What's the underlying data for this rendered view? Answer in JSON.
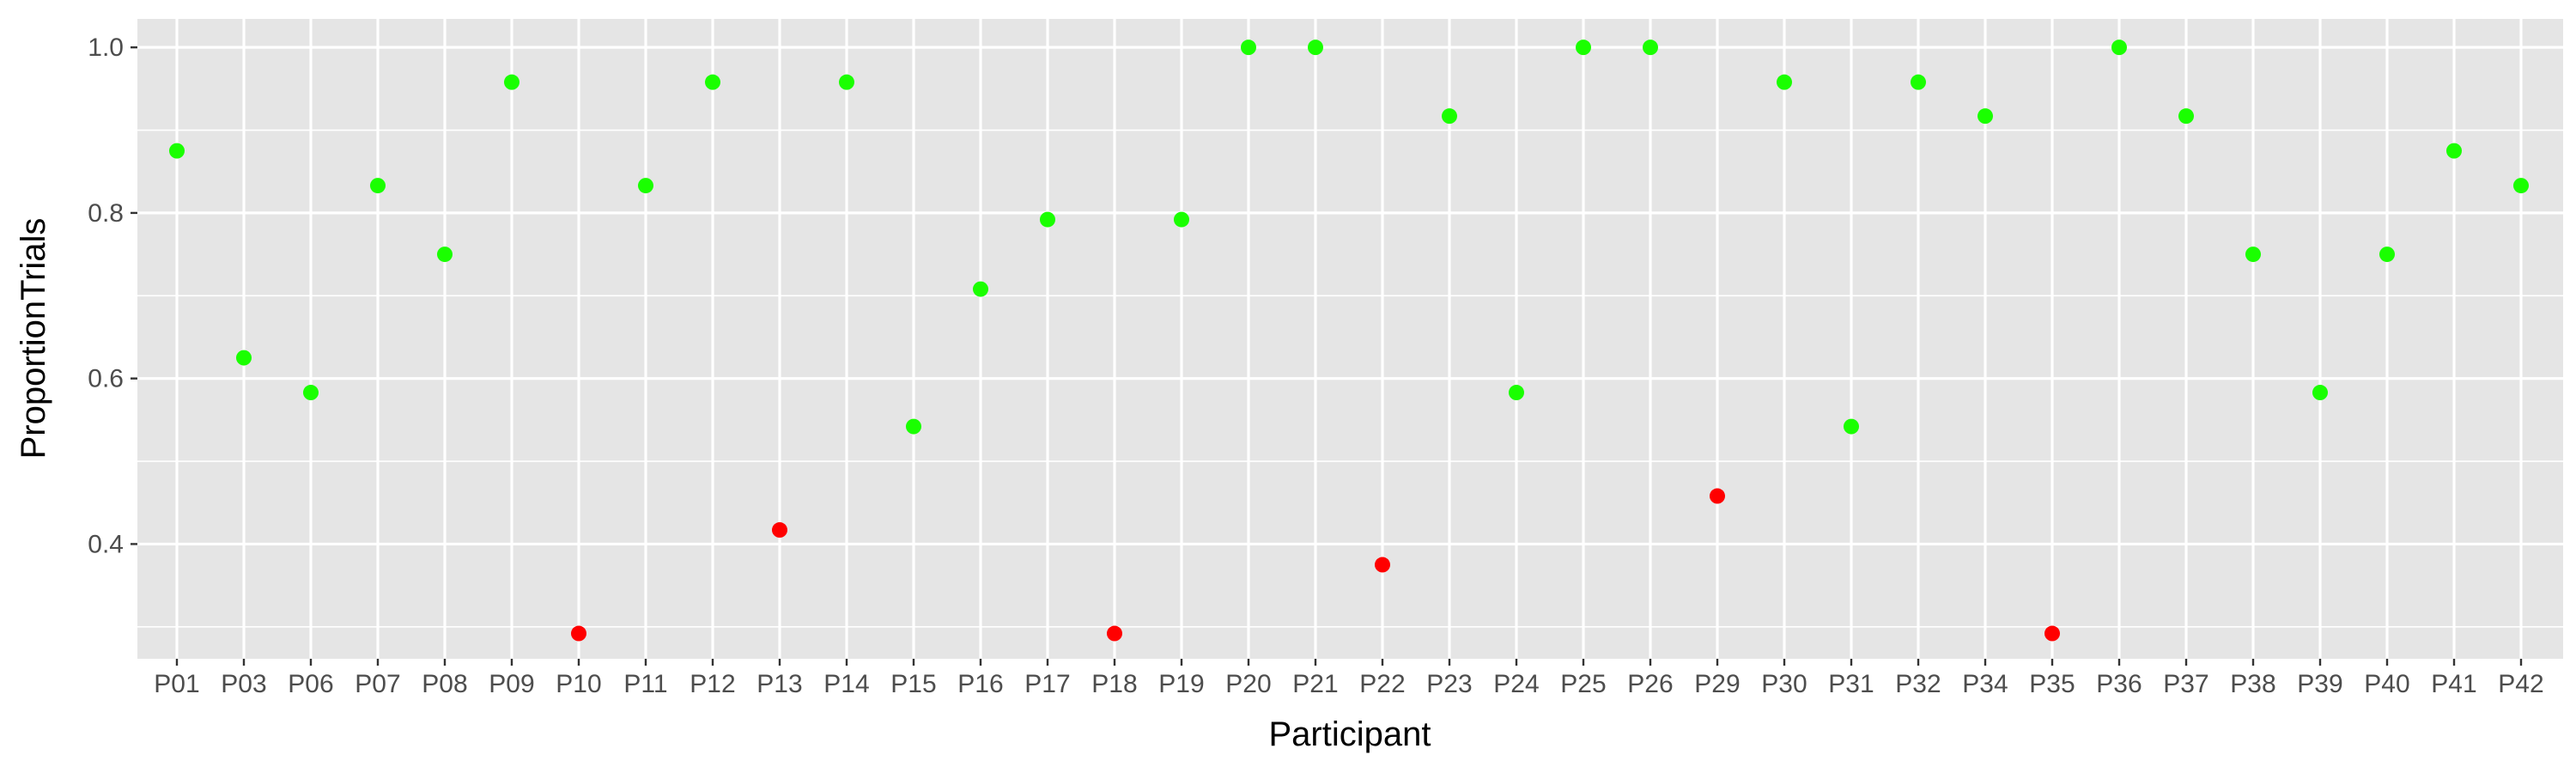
{
  "chart_data": {
    "type": "scatter",
    "xlabel": "Participant",
    "ylabel": "ProportionTrials",
    "ylim": [
      0.2614,
      1.0344
    ],
    "y_ticks": [
      0.4,
      0.6,
      0.8,
      1.0
    ],
    "y_tick_labels": [
      "0.4",
      "0.6",
      "0.8",
      "1.0"
    ],
    "grid": true,
    "legend": "none",
    "colors": {
      "high": "#1aff00",
      "low": "#ff0000",
      "panel": "#e5e5e5",
      "grid": "#ffffff"
    },
    "categories": [
      "P01",
      "P03",
      "P06",
      "P07",
      "P08",
      "P09",
      "P10",
      "P11",
      "P12",
      "P13",
      "P14",
      "P15",
      "P16",
      "P17",
      "P18",
      "P19",
      "P20",
      "P21",
      "P22",
      "P23",
      "P24",
      "P25",
      "P26",
      "P29",
      "P30",
      "P31",
      "P32",
      "P34",
      "P35",
      "P36",
      "P37",
      "P38",
      "P39",
      "P40",
      "P41",
      "P42"
    ],
    "values": [
      0.875,
      0.625,
      0.583,
      0.833,
      0.75,
      0.958,
      0.292,
      0.833,
      0.958,
      0.417,
      0.958,
      0.542,
      0.708,
      0.792,
      0.292,
      0.792,
      1.0,
      1.0,
      0.375,
      0.917,
      0.583,
      1.0,
      1.0,
      0.458,
      0.958,
      0.542,
      0.958,
      0.917,
      0.292,
      1.0,
      0.917,
      0.75,
      0.583,
      0.75,
      0.875,
      0.833
    ],
    "point_color": [
      "high",
      "high",
      "high",
      "high",
      "high",
      "high",
      "low",
      "high",
      "high",
      "low",
      "high",
      "high",
      "high",
      "high",
      "low",
      "high",
      "high",
      "high",
      "low",
      "high",
      "high",
      "high",
      "high",
      "low",
      "high",
      "high",
      "high",
      "high",
      "low",
      "high",
      "high",
      "high",
      "high",
      "high",
      "high",
      "high"
    ]
  }
}
